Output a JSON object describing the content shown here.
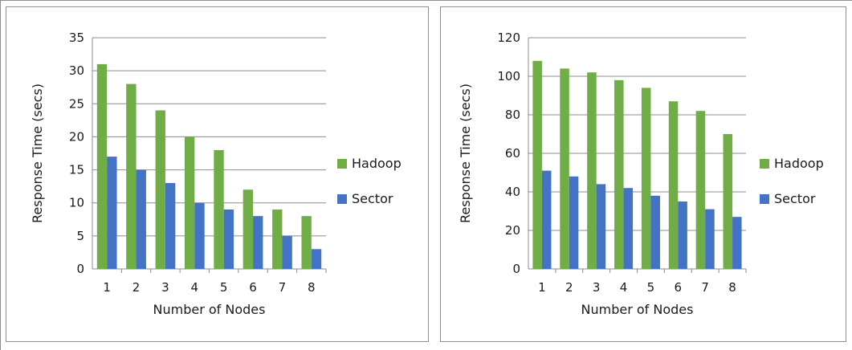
{
  "colors": {
    "hadoop": "#70ad47",
    "sector": "#4472c4",
    "grid": "#8c8c8c",
    "axis": "#8c8c8c"
  },
  "chart_data": [
    {
      "type": "bar",
      "categories": [
        "1",
        "2",
        "3",
        "4",
        "5",
        "6",
        "7",
        "8"
      ],
      "series": [
        {
          "name": "Hadoop",
          "values": [
            31,
            28,
            24,
            20,
            18,
            12,
            9,
            8
          ]
        },
        {
          "name": "Sector",
          "values": [
            17,
            15,
            13,
            10,
            9,
            8,
            5,
            3
          ]
        }
      ],
      "yticks": [
        "0",
        "5",
        "10",
        "15",
        "20",
        "25",
        "30",
        "35"
      ],
      "xlabel": "Number of Nodes",
      "ylabel": "Response Time (secs)",
      "ylim": [
        0,
        35
      ],
      "grid": true,
      "legend_position": "right"
    },
    {
      "type": "bar",
      "categories": [
        "1",
        "2",
        "3",
        "4",
        "5",
        "6",
        "7",
        "8"
      ],
      "series": [
        {
          "name": "Hadoop",
          "values": [
            108,
            104,
            102,
            98,
            94,
            87,
            82,
            70
          ]
        },
        {
          "name": "Sector",
          "values": [
            51,
            48,
            44,
            42,
            38,
            35,
            31,
            27
          ]
        }
      ],
      "yticks": [
        "0",
        "20",
        "40",
        "60",
        "80",
        "100",
        "120"
      ],
      "xlabel": "Number of Nodes",
      "ylabel": "Response Time (secs)",
      "ylim": [
        0,
        120
      ],
      "grid": true,
      "legend_position": "right"
    }
  ]
}
